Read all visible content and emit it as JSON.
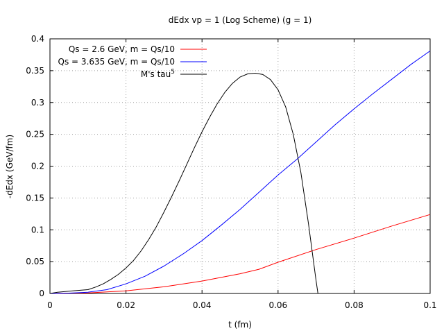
{
  "chart_data": {
    "type": "line",
    "title": "dEdx vp = 1 (Log Scheme) (g = 1)",
    "xlabel": "t (fm)",
    "ylabel": "-dEdx (GeV/fm)",
    "xlim": [
      0,
      0.1
    ],
    "ylim": [
      0,
      0.4
    ],
    "grid": true,
    "legend_position": "top-left",
    "x_ticks": [
      {
        "value": 0,
        "label": "0"
      },
      {
        "value": 0.02,
        "label": "0.02"
      },
      {
        "value": 0.04,
        "label": "0.04"
      },
      {
        "value": 0.06,
        "label": "0.06"
      },
      {
        "value": 0.08,
        "label": "0.08"
      },
      {
        "value": 0.1,
        "label": "0.1"
      }
    ],
    "y_ticks": [
      {
        "value": 0,
        "label": "0"
      },
      {
        "value": 0.05,
        "label": "0.05"
      },
      {
        "value": 0.1,
        "label": "0.1"
      },
      {
        "value": 0.15,
        "label": "0.15"
      },
      {
        "value": 0.2,
        "label": "0.2"
      },
      {
        "value": 0.25,
        "label": "0.25"
      },
      {
        "value": 0.3,
        "label": "0.3"
      },
      {
        "value": 0.35,
        "label": "0.35"
      },
      {
        "value": 0.4,
        "label": "0.4"
      }
    ],
    "series": [
      {
        "name": "Qs = 2.6 GeV, m = Qs/10",
        "color": "#ff0000",
        "points": [
          [
            0,
            0
          ],
          [
            0.01,
            0.0008
          ],
          [
            0.02,
            0.004
          ],
          [
            0.03,
            0.0105
          ],
          [
            0.04,
            0.0195
          ],
          [
            0.05,
            0.031
          ],
          [
            0.055,
            0.038
          ],
          [
            0.06,
            0.049
          ],
          [
            0.07,
            0.069
          ],
          [
            0.08,
            0.087
          ],
          [
            0.09,
            0.106
          ],
          [
            0.1,
            0.124
          ]
        ]
      },
      {
        "name": "Qs = 3.635 GeV, m = Qs/10",
        "color": "#0000ff",
        "points": [
          [
            0,
            0
          ],
          [
            0.005,
            0.0005
          ],
          [
            0.01,
            0.002
          ],
          [
            0.015,
            0.006
          ],
          [
            0.02,
            0.015
          ],
          [
            0.025,
            0.027
          ],
          [
            0.03,
            0.043
          ],
          [
            0.035,
            0.062
          ],
          [
            0.04,
            0.083
          ],
          [
            0.045,
            0.107
          ],
          [
            0.05,
            0.132
          ],
          [
            0.055,
            0.159
          ],
          [
            0.06,
            0.186
          ],
          [
            0.065,
            0.211
          ],
          [
            0.07,
            0.238
          ],
          [
            0.075,
            0.265
          ],
          [
            0.08,
            0.29
          ],
          [
            0.085,
            0.314
          ],
          [
            0.09,
            0.337
          ],
          [
            0.095,
            0.36
          ],
          [
            0.1,
            0.381
          ]
        ]
      },
      {
        "name": "M's tau",
        "name_superscript": "5",
        "color": "#000000",
        "points": [
          [
            0,
            0
          ],
          [
            0.002,
            0.002
          ],
          [
            0.004,
            0.003
          ],
          [
            0.006,
            0.004
          ],
          [
            0.008,
            0.005
          ],
          [
            0.01,
            0.006
          ],
          [
            0.012,
            0.01
          ],
          [
            0.014,
            0.015
          ],
          [
            0.016,
            0.022
          ],
          [
            0.018,
            0.03
          ],
          [
            0.02,
            0.04
          ],
          [
            0.022,
            0.052
          ],
          [
            0.024,
            0.067
          ],
          [
            0.026,
            0.085
          ],
          [
            0.028,
            0.105
          ],
          [
            0.03,
            0.128
          ],
          [
            0.032,
            0.152
          ],
          [
            0.034,
            0.177
          ],
          [
            0.036,
            0.203
          ],
          [
            0.038,
            0.229
          ],
          [
            0.04,
            0.254
          ],
          [
            0.042,
            0.277
          ],
          [
            0.044,
            0.298
          ],
          [
            0.046,
            0.316
          ],
          [
            0.048,
            0.33
          ],
          [
            0.05,
            0.34
          ],
          [
            0.052,
            0.345
          ],
          [
            0.054,
            0.346
          ],
          [
            0.056,
            0.344
          ],
          [
            0.058,
            0.336
          ],
          [
            0.06,
            0.32
          ],
          [
            0.062,
            0.293
          ],
          [
            0.064,
            0.25
          ],
          [
            0.066,
            0.19
          ],
          [
            0.068,
            0.11
          ],
          [
            0.07,
            0.02
          ],
          [
            0.0705,
            0.0
          ]
        ]
      }
    ]
  }
}
